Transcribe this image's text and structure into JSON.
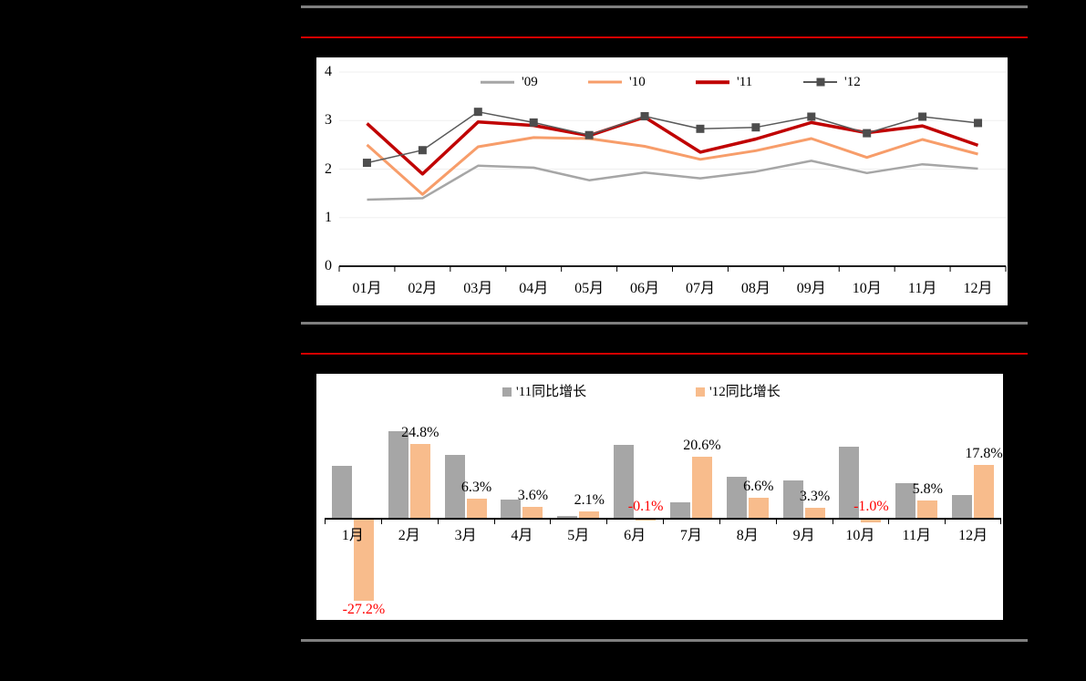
{
  "colors": {
    "page_background": "#000000",
    "rule_gray": "#7f7f7f",
    "rule_red": "#d40000",
    "panel_background": "#ffffff",
    "axis": "#000000",
    "gridline": "#efefef",
    "data_label_positive": "#000000",
    "data_label_negative": "#ff0000"
  },
  "chart_data": [
    {
      "type": "line",
      "title": "",
      "categories": [
        "01月",
        "02月",
        "03月",
        "04月",
        "05月",
        "06月",
        "07月",
        "08月",
        "09月",
        "10月",
        "11月",
        "12月"
      ],
      "yticks": [
        0,
        1,
        2,
        3,
        4
      ],
      "ylim": [
        0,
        4
      ],
      "grid": true,
      "legend_position": "top",
      "series": [
        {
          "name": "'09",
          "color": "#a6a6a6",
          "line_width": 2.5,
          "marker": false,
          "values": [
            1.37,
            1.4,
            2.07,
            2.03,
            1.77,
            1.93,
            1.81,
            1.95,
            2.17,
            1.92,
            2.1,
            2.01
          ]
        },
        {
          "name": "'10",
          "color": "#f79d6a",
          "line_width": 3,
          "marker": false,
          "values": [
            2.5,
            1.48,
            2.46,
            2.65,
            2.63,
            2.47,
            2.2,
            2.38,
            2.63,
            2.24,
            2.61,
            2.31
          ]
        },
        {
          "name": "'11",
          "color": "#c00000",
          "line_width": 3.5,
          "marker": false,
          "values": [
            2.94,
            1.9,
            2.97,
            2.9,
            2.69,
            3.07,
            2.35,
            2.62,
            2.96,
            2.75,
            2.89,
            2.49
          ]
        },
        {
          "name": "'12",
          "color": "#595959",
          "line_width": 1.5,
          "marker": true,
          "marker_color": "#4d4d4d",
          "values": [
            2.13,
            2.39,
            3.18,
            2.96,
            2.7,
            3.09,
            2.83,
            2.86,
            3.08,
            2.74,
            3.08,
            2.95
          ]
        }
      ]
    },
    {
      "type": "bar",
      "title": "",
      "categories": [
        "1月",
        "2月",
        "3月",
        "4月",
        "5月",
        "6月",
        "7月",
        "8月",
        "9月",
        "10月",
        "11月",
        "12月"
      ],
      "ylim": [
        -30,
        32
      ],
      "grid": false,
      "legend_position": "top",
      "label_format": "0.0%",
      "series": [
        {
          "name": "'11同比增长",
          "color": "#a6a6a6",
          "data_labels": false,
          "values": [
            17.6,
            29.0,
            21.1,
            6.1,
            0.5,
            24.4,
            5.2,
            13.7,
            12.7,
            24.0,
            11.7,
            7.6
          ]
        },
        {
          "name": "'12同比增长",
          "color": "#f8bc8c",
          "data_labels": true,
          "values": [
            -27.2,
            24.8,
            6.3,
            3.6,
            2.1,
            -0.1,
            20.6,
            6.6,
            3.3,
            -1.0,
            5.8,
            17.8
          ]
        }
      ]
    }
  ]
}
